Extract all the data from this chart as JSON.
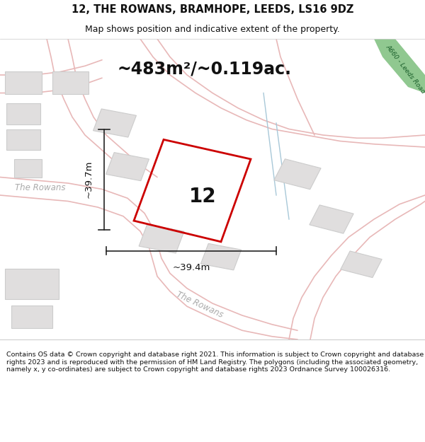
{
  "title_line1": "12, THE ROWANS, BRAMHOPE, LEEDS, LS16 9DZ",
  "title_line2": "Map shows position and indicative extent of the property.",
  "area_text": "~483m²/~0.119ac.",
  "property_number": "12",
  "dim_height": "~39.7m",
  "dim_width": "~39.4m",
  "road_label_rowans1": "The Rowans",
  "road_label_rowans2": "The Rowans",
  "road_label_a660": "A660 - Leeds Road",
  "footer_text": "Contains OS data © Crown copyright and database right 2021. This information is subject to Crown copyright and database rights 2023 and is reproduced with the permission of HM Land Registry. The polygons (including the associated geometry, namely x, y co-ordinates) are subject to Crown copyright and database rights 2023 Ordnance Survey 100026316.",
  "bg_color": "#ffffff",
  "map_bg": "#f5f0f0",
  "road_color": "#e8b8b8",
  "property_fill": "#ffffff",
  "property_outline_color": "#cc0000",
  "building_fill": "#e0dede",
  "building_outline": "#cccccc",
  "dim_line_color": "#222222",
  "road_green_fill": "#90c890",
  "road_green_text": "#1a5e2a",
  "blue_line_color": "#a8c8d8",
  "street_label_color": "#aaaaaa",
  "header_divider": "#cccccc",
  "footer_divider": "#cccccc"
}
